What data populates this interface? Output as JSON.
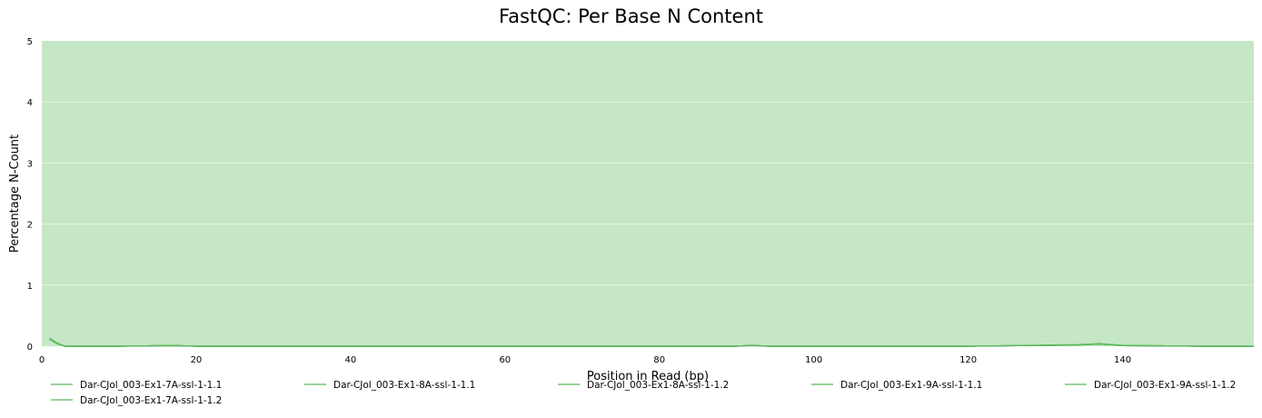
{
  "chart_data": {
    "type": "line",
    "title": "FastQC: Per Base N Content",
    "xlabel": "Position in Read (bp)",
    "ylabel": "Percentage N-Count",
    "xlim": [
      0,
      157
    ],
    "ylim": [
      0,
      5
    ],
    "xticks": [
      "0",
      "20",
      "40",
      "60",
      "80",
      "100",
      "120",
      "140"
    ],
    "yticks": [
      "0",
      "1",
      "2",
      "3",
      "4",
      "5"
    ],
    "background_band": {
      "from": 0,
      "to": 5,
      "color": "#c5e7c5"
    },
    "grid": true,
    "legend_position": "bottom",
    "line_color": "#5cb85c",
    "series": [
      {
        "name": "Dar-CJol_003-Ex1-7A-ssl-1-1.1",
        "x": [
          1,
          2,
          3,
          5,
          10,
          17,
          20,
          40,
          60,
          80,
          90,
          92,
          94,
          100,
          120,
          134,
          137,
          140,
          150,
          157
        ],
        "y": [
          0.13,
          0.05,
          0.0,
          0.0,
          0.0,
          0.01,
          0.0,
          0.0,
          0.0,
          0.0,
          0.0,
          0.015,
          0.0,
          0.0,
          0.0,
          0.02,
          0.04,
          0.01,
          0.0,
          0.0
        ]
      },
      {
        "name": "Dar-CJol_003-Ex1-8A-ssl-1-1.1",
        "x": [
          1,
          2,
          3,
          5,
          10,
          17,
          20,
          40,
          60,
          80,
          90,
          92,
          94,
          100,
          120,
          134,
          137,
          140,
          150,
          157
        ],
        "y": [
          0.12,
          0.04,
          0.0,
          0.0,
          0.0,
          0.01,
          0.0,
          0.0,
          0.0,
          0.0,
          0.0,
          0.015,
          0.0,
          0.0,
          0.0,
          0.02,
          0.035,
          0.01,
          0.0,
          0.0
        ]
      },
      {
        "name": "Dar-CJol_003-Ex1-8A-ssl-1-1.2",
        "x": [
          1,
          2,
          3,
          5,
          10,
          17,
          20,
          40,
          60,
          80,
          90,
          92,
          94,
          100,
          120,
          134,
          137,
          140,
          150,
          157
        ],
        "y": [
          0.11,
          0.04,
          0.0,
          0.0,
          0.0,
          0.01,
          0.0,
          0.0,
          0.0,
          0.0,
          0.0,
          0.01,
          0.0,
          0.0,
          0.0,
          0.02,
          0.04,
          0.01,
          0.0,
          0.0
        ]
      },
      {
        "name": "Dar-CJol_003-Ex1-9A-ssl-1-1.1",
        "x": [
          1,
          2,
          3,
          5,
          10,
          17,
          20,
          40,
          60,
          80,
          90,
          92,
          94,
          100,
          120,
          134,
          137,
          140,
          150,
          157
        ],
        "y": [
          0.13,
          0.05,
          0.0,
          0.0,
          0.0,
          0.01,
          0.0,
          0.0,
          0.0,
          0.0,
          0.0,
          0.015,
          0.0,
          0.0,
          0.0,
          0.025,
          0.04,
          0.015,
          0.0,
          0.0
        ]
      },
      {
        "name": "Dar-CJol_003-Ex1-9A-ssl-1-1.2",
        "x": [
          1,
          2,
          3,
          5,
          10,
          17,
          20,
          40,
          60,
          80,
          90,
          92,
          94,
          100,
          120,
          134,
          137,
          140,
          150,
          157
        ],
        "y": [
          0.12,
          0.045,
          0.0,
          0.0,
          0.0,
          0.01,
          0.0,
          0.0,
          0.0,
          0.0,
          0.0,
          0.01,
          0.0,
          0.0,
          0.0,
          0.02,
          0.035,
          0.01,
          0.0,
          0.0
        ]
      },
      {
        "name": "Dar-CJol_003-Ex1-7A-ssl-1-1.2",
        "x": [
          1,
          2,
          3,
          5,
          10,
          17,
          20,
          40,
          60,
          80,
          90,
          92,
          94,
          100,
          120,
          134,
          137,
          140,
          150,
          157
        ],
        "y": [
          0.12,
          0.04,
          0.0,
          0.0,
          0.0,
          0.01,
          0.0,
          0.0,
          0.0,
          0.0,
          0.0,
          0.015,
          0.0,
          0.0,
          0.0,
          0.02,
          0.04,
          0.01,
          0.0,
          0.0
        ]
      }
    ]
  }
}
